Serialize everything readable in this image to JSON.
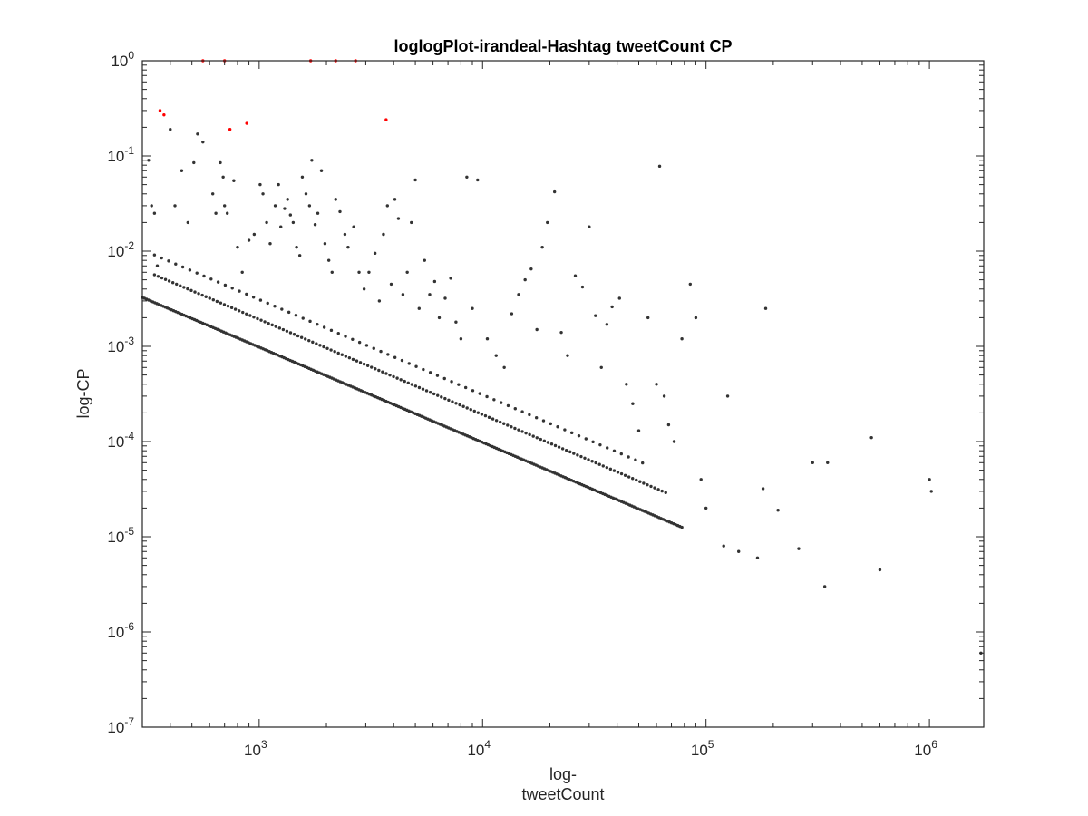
{
  "chart_data": {
    "type": "scatter",
    "title": "loglogPlot-irandeal-Hashtag tweetCount CP",
    "xlabel_lines": [
      "log-",
      "tweetCount"
    ],
    "ylabel": "log-CP",
    "xscale": "log",
    "yscale": "log",
    "xlim": [
      300,
      1750000
    ],
    "ylim": [
      1e-07,
      1
    ],
    "x_ticks": [
      {
        "value": 1000,
        "base": "10",
        "exp": "3"
      },
      {
        "value": 10000,
        "base": "10",
        "exp": "4"
      },
      {
        "value": 100000,
        "base": "10",
        "exp": "5"
      },
      {
        "value": 1000000,
        "base": "10",
        "exp": "6"
      }
    ],
    "y_ticks": [
      {
        "value": 1e-07,
        "base": "10",
        "exp": "-7"
      },
      {
        "value": 1e-06,
        "base": "10",
        "exp": "-6"
      },
      {
        "value": 1e-05,
        "base": "10",
        "exp": "-5"
      },
      {
        "value": 0.0001,
        "base": "10",
        "exp": "-4"
      },
      {
        "value": 0.001,
        "base": "10",
        "exp": "-3"
      },
      {
        "value": 0.01,
        "base": "10",
        "exp": "-2"
      },
      {
        "value": 0.1,
        "base": "10",
        "exp": "-1"
      },
      {
        "value": 1,
        "base": "10",
        "exp": "0"
      }
    ],
    "grid": false,
    "colors": {
      "main": "#333333",
      "highlight": "#ff0000",
      "axis": "#262626"
    },
    "series": [
      {
        "color": "#ff0000",
        "points": [
          [
            360,
            0.3
          ],
          [
            375,
            0.27
          ],
          [
            740,
            0.19
          ],
          [
            880,
            0.22
          ],
          [
            3700,
            0.24
          ],
          [
            560,
            1.0
          ],
          [
            700,
            1.0
          ],
          [
            1700,
            1.0
          ],
          [
            2200,
            1.0
          ],
          [
            2700,
            1.0
          ]
        ]
      },
      {
        "color": "#333333",
        "line_bands": [
          {
            "x_from": 300,
            "x_to": 78000,
            "c": 0.98,
            "n": 260
          },
          {
            "x_from": 340,
            "x_to": 66000,
            "c": 1.92,
            "n": 140
          },
          {
            "x_from": 340,
            "x_to": 52000,
            "c": 3.1,
            "n": 70
          }
        ],
        "points": [
          [
            320,
            0.09
          ],
          [
            330,
            0.03
          ],
          [
            340,
            0.025
          ],
          [
            350,
            0.007
          ],
          [
            400,
            0.19
          ],
          [
            420,
            0.03
          ],
          [
            450,
            0.07
          ],
          [
            480,
            0.02
          ],
          [
            510,
            0.085
          ],
          [
            530,
            0.17
          ],
          [
            560,
            0.14
          ],
          [
            620,
            0.04
          ],
          [
            640,
            0.025
          ],
          [
            670,
            0.085
          ],
          [
            690,
            0.06
          ],
          [
            700,
            0.03
          ],
          [
            720,
            0.025
          ],
          [
            770,
            0.055
          ],
          [
            800,
            0.011
          ],
          [
            840,
            0.006
          ],
          [
            900,
            0.013
          ],
          [
            950,
            0.015
          ],
          [
            1010,
            0.05
          ],
          [
            1040,
            0.04
          ],
          [
            1080,
            0.02
          ],
          [
            1120,
            0.012
          ],
          [
            1180,
            0.03
          ],
          [
            1220,
            0.05
          ],
          [
            1250,
            0.018
          ],
          [
            1300,
            0.028
          ],
          [
            1340,
            0.035
          ],
          [
            1380,
            0.024
          ],
          [
            1420,
            0.02
          ],
          [
            1470,
            0.011
          ],
          [
            1520,
            0.009
          ],
          [
            1560,
            0.06
          ],
          [
            1620,
            0.04
          ],
          [
            1680,
            0.03
          ],
          [
            1720,
            0.09
          ],
          [
            1780,
            0.019
          ],
          [
            1830,
            0.025
          ],
          [
            1900,
            0.07
          ],
          [
            1970,
            0.012
          ],
          [
            2050,
            0.008
          ],
          [
            2120,
            0.006
          ],
          [
            2200,
            0.035
          ],
          [
            2300,
            0.026
          ],
          [
            2420,
            0.015
          ],
          [
            2500,
            0.011
          ],
          [
            2650,
            0.018
          ],
          [
            2800,
            0.006
          ],
          [
            2950,
            0.004
          ],
          [
            3100,
            0.006
          ],
          [
            3300,
            0.0095
          ],
          [
            3450,
            0.003
          ],
          [
            3600,
            0.015
          ],
          [
            3750,
            0.03
          ],
          [
            3900,
            0.0045
          ],
          [
            4050,
            0.035
          ],
          [
            4200,
            0.022
          ],
          [
            4400,
            0.0035
          ],
          [
            4600,
            0.006
          ],
          [
            4800,
            0.02
          ],
          [
            5000,
            0.056
          ],
          [
            5200,
            0.0025
          ],
          [
            5500,
            0.008
          ],
          [
            5800,
            0.0035
          ],
          [
            6100,
            0.0048
          ],
          [
            6400,
            0.002
          ],
          [
            6800,
            0.0032
          ],
          [
            7200,
            0.0052
          ],
          [
            7600,
            0.0018
          ],
          [
            8000,
            0.0012
          ],
          [
            8500,
            0.06
          ],
          [
            9000,
            0.0025
          ],
          [
            9500,
            0.056
          ],
          [
            10500,
            0.0012
          ],
          [
            11500,
            0.0008
          ],
          [
            12500,
            0.0006
          ],
          [
            13500,
            0.0022
          ],
          [
            14500,
            0.0035
          ],
          [
            15500,
            0.005
          ],
          [
            16500,
            0.0065
          ],
          [
            17500,
            0.0015
          ],
          [
            18500,
            0.011
          ],
          [
            19500,
            0.02
          ],
          [
            21000,
            0.042
          ],
          [
            22500,
            0.0014
          ],
          [
            24000,
            0.0008
          ],
          [
            26000,
            0.0055
          ],
          [
            28000,
            0.0042
          ],
          [
            30000,
            0.018
          ],
          [
            32000,
            0.0021
          ],
          [
            34000,
            0.0006
          ],
          [
            36000,
            0.0017
          ],
          [
            38000,
            0.0026
          ],
          [
            41000,
            0.0032
          ],
          [
            44000,
            0.0004
          ],
          [
            47000,
            0.00025
          ],
          [
            50000,
            0.00013
          ],
          [
            55000,
            0.002
          ],
          [
            60000,
            0.0004
          ],
          [
            62000,
            0.078
          ],
          [
            65000,
            0.0003
          ],
          [
            68000,
            0.00015
          ],
          [
            72000,
            0.0001
          ],
          [
            78000,
            0.0012
          ],
          [
            85000,
            0.0045
          ],
          [
            90000,
            0.002
          ],
          [
            95000,
            4e-05
          ],
          [
            100000,
            2e-05
          ],
          [
            120000,
            8e-06
          ],
          [
            125000,
            0.0003
          ],
          [
            140000,
            7e-06
          ],
          [
            170000,
            6e-06
          ],
          [
            180000,
            3.2e-05
          ],
          [
            185000,
            0.0025
          ],
          [
            210000,
            1.9e-05
          ],
          [
            260000,
            7.5e-06
          ],
          [
            300000,
            6e-05
          ],
          [
            340000,
            3e-06
          ],
          [
            350000,
            6e-05
          ],
          [
            550000,
            0.00011
          ],
          [
            600000,
            4.5e-06
          ],
          [
            1000000,
            4e-05
          ],
          [
            1020000,
            3e-05
          ],
          [
            1700000,
            6e-07
          ]
        ]
      }
    ]
  }
}
